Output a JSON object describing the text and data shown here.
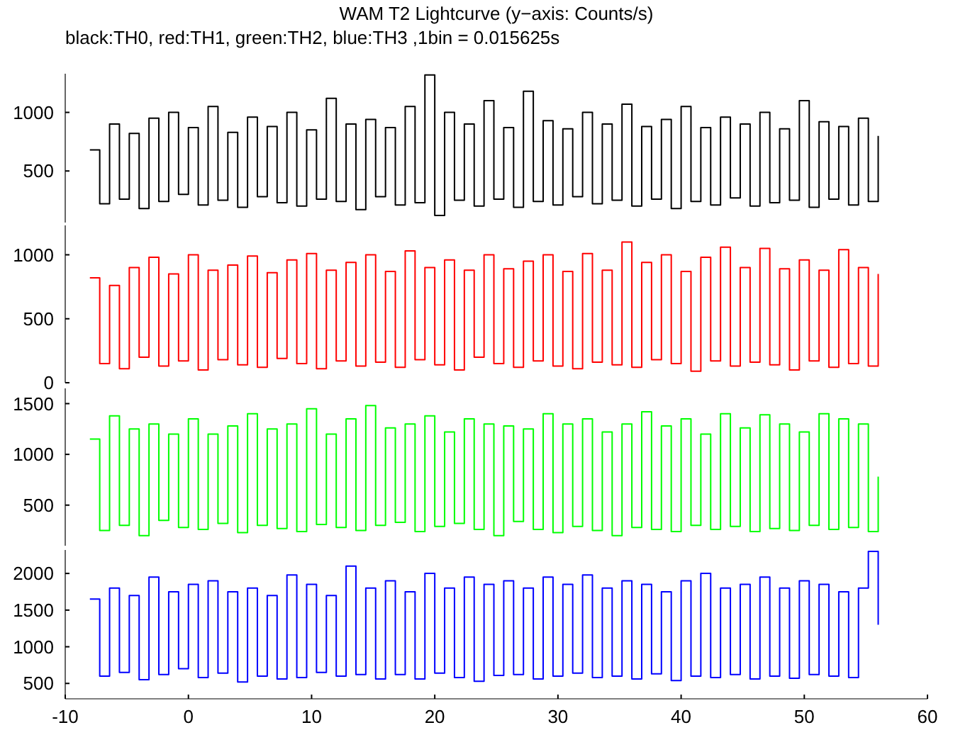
{
  "chart_data": [
    {
      "type": "step",
      "title": "WAM T2 Lightcurve (y−axis: Counts/s)",
      "subtitle": "black:TH0, red:TH1, green:TH2, blue:TH3 ,1bin = 0.015625s",
      "xlim": [
        -10,
        60
      ],
      "ylim": [
        60,
        1330
      ],
      "yticks": [
        500,
        1000
      ],
      "tick_labels": "y",
      "x": [
        -8,
        -7.2,
        -6.4,
        -5.6,
        -4.8,
        -4,
        -3.2,
        -2.4,
        -1.6,
        -0.8,
        0,
        0.8,
        1.6,
        2.4,
        3.2,
        4,
        4.8,
        5.6,
        6.4,
        7.2,
        8,
        8.8,
        9.6,
        10.4,
        11.2,
        12,
        12.8,
        13.6,
        14.4,
        15.2,
        16,
        16.8,
        17.6,
        18.4,
        19.2,
        20,
        20.8,
        21.6,
        22.4,
        23.2,
        24,
        24.8,
        25.6,
        26.4,
        27.2,
        28,
        28.8,
        29.6,
        30.4,
        31.2,
        32,
        32.8,
        33.6,
        34.4,
        35.2,
        36,
        36.8,
        37.6,
        38.4,
        39.2,
        40,
        40.8,
        41.6,
        42.4,
        43.2,
        44,
        44.8,
        45.6,
        46.4,
        47.2,
        48,
        48.8,
        49.6,
        50.4,
        51.2,
        52,
        52.8,
        53.6,
        54.4,
        55.2,
        56
      ],
      "series": [
        {
          "color": "#000000",
          "values": [
            680,
            220,
            900,
            260,
            820,
            180,
            950,
            240,
            1000,
            300,
            870,
            210,
            1050,
            250,
            830,
            190,
            960,
            280,
            880,
            230,
            1000,
            200,
            850,
            260,
            1120,
            240,
            900,
            170,
            940,
            280,
            870,
            210,
            1050,
            230,
            1320,
            120,
            1000,
            250,
            900,
            200,
            1100,
            260,
            870,
            190,
            1180,
            240,
            930,
            210,
            860,
            280,
            1000,
            220,
            900,
            250,
            1070,
            200,
            880,
            260,
            940,
            180,
            1050,
            240,
            870,
            210,
            960,
            270,
            900,
            200,
            1000,
            230,
            860,
            250,
            1100,
            190,
            920,
            260,
            880,
            210,
            950,
            240,
            800
          ]
        }
      ]
    },
    {
      "type": "step",
      "xlim": [
        -10,
        60
      ],
      "ylim": [
        0,
        1230
      ],
      "yticks": [
        0,
        500,
        1000
      ],
      "tick_labels": "y",
      "x": [
        -8,
        -7.2,
        -6.4,
        -5.6,
        -4.8,
        -4,
        -3.2,
        -2.4,
        -1.6,
        -0.8,
        0,
        0.8,
        1.6,
        2.4,
        3.2,
        4,
        4.8,
        5.6,
        6.4,
        7.2,
        8,
        8.8,
        9.6,
        10.4,
        11.2,
        12,
        12.8,
        13.6,
        14.4,
        15.2,
        16,
        16.8,
        17.6,
        18.4,
        19.2,
        20,
        20.8,
        21.6,
        22.4,
        23.2,
        24,
        24.8,
        25.6,
        26.4,
        27.2,
        28,
        28.8,
        29.6,
        30.4,
        31.2,
        32,
        32.8,
        33.6,
        34.4,
        35.2,
        36,
        36.8,
        37.6,
        38.4,
        39.2,
        40,
        40.8,
        41.6,
        42.4,
        43.2,
        44,
        44.8,
        45.6,
        46.4,
        47.2,
        48,
        48.8,
        49.6,
        50.4,
        51.2,
        52,
        52.8,
        53.6,
        54.4,
        55.2,
        56
      ],
      "series": [
        {
          "color": "#ff0000",
          "values": [
            820,
            150,
            760,
            110,
            900,
            200,
            980,
            130,
            850,
            170,
            1000,
            100,
            880,
            180,
            920,
            140,
            990,
            120,
            860,
            190,
            960,
            150,
            1010,
            110,
            880,
            170,
            940,
            130,
            1000,
            160,
            870,
            120,
            1030,
            180,
            900,
            140,
            960,
            100,
            880,
            200,
            1000,
            150,
            890,
            120,
            950,
            170,
            1000,
            130,
            870,
            110,
            1010,
            160,
            880,
            140,
            1100,
            120,
            940,
            180,
            1000,
            150,
            870,
            90,
            980,
            170,
            1060,
            130,
            900,
            160,
            1050,
            140,
            890,
            100,
            960,
            170,
            880,
            120,
            1040,
            150,
            900,
            130,
            850
          ]
        }
      ]
    },
    {
      "type": "step",
      "xlim": [
        -10,
        60
      ],
      "ylim": [
        100,
        1650
      ],
      "yticks": [
        500,
        1000,
        1500
      ],
      "tick_labels": "y",
      "x": [
        -8,
        -7.2,
        -6.4,
        -5.6,
        -4.8,
        -4,
        -3.2,
        -2.4,
        -1.6,
        -0.8,
        0,
        0.8,
        1.6,
        2.4,
        3.2,
        4,
        4.8,
        5.6,
        6.4,
        7.2,
        8,
        8.8,
        9.6,
        10.4,
        11.2,
        12,
        12.8,
        13.6,
        14.4,
        15.2,
        16,
        16.8,
        17.6,
        18.4,
        19.2,
        20,
        20.8,
        21.6,
        22.4,
        23.2,
        24,
        24.8,
        25.6,
        26.4,
        27.2,
        28,
        28.8,
        29.6,
        30.4,
        31.2,
        32,
        32.8,
        33.6,
        34.4,
        35.2,
        36,
        36.8,
        37.6,
        38.4,
        39.2,
        40,
        40.8,
        41.6,
        42.4,
        43.2,
        44,
        44.8,
        45.6,
        46.4,
        47.2,
        48,
        48.8,
        49.6,
        50.4,
        51.2,
        52,
        52.8,
        53.6,
        54.4,
        55.2,
        56
      ],
      "series": [
        {
          "color": "#00ff00",
          "values": [
            1150,
            250,
            1380,
            300,
            1250,
            200,
            1300,
            350,
            1200,
            280,
            1350,
            260,
            1200,
            320,
            1280,
            230,
            1400,
            300,
            1250,
            270,
            1300,
            240,
            1450,
            310,
            1200,
            280,
            1350,
            250,
            1480,
            300,
            1260,
            330,
            1300,
            240,
            1380,
            290,
            1220,
            320,
            1350,
            260,
            1300,
            200,
            1280,
            340,
            1250,
            260,
            1400,
            230,
            1300,
            290,
            1350,
            250,
            1220,
            200,
            1300,
            280,
            1420,
            260,
            1280,
            240,
            1350,
            300,
            1200,
            260,
            1400,
            290,
            1260,
            240,
            1390,
            270,
            1300,
            250,
            1220,
            300,
            1400,
            260,
            1350,
            280,
            1300,
            240,
            780
          ]
        }
      ]
    },
    {
      "type": "step",
      "xlim": [
        -10,
        60
      ],
      "ylim": [
        290,
        2320
      ],
      "yticks": [
        500,
        1000,
        1500,
        2000
      ],
      "xticks": [
        -10,
        0,
        10,
        20,
        30,
        40,
        50,
        60
      ],
      "x": [
        -8,
        -7.2,
        -6.4,
        -5.6,
        -4.8,
        -4,
        -3.2,
        -2.4,
        -1.6,
        -0.8,
        0,
        0.8,
        1.6,
        2.4,
        3.2,
        4,
        4.8,
        5.6,
        6.4,
        7.2,
        8,
        8.8,
        9.6,
        10.4,
        11.2,
        12,
        12.8,
        13.6,
        14.4,
        15.2,
        16,
        16.8,
        17.6,
        18.4,
        19.2,
        20,
        20.8,
        21.6,
        22.4,
        23.2,
        24,
        24.8,
        25.6,
        26.4,
        27.2,
        28,
        28.8,
        29.6,
        30.4,
        31.2,
        32,
        32.8,
        33.6,
        34.4,
        35.2,
        36,
        36.8,
        37.6,
        38.4,
        39.2,
        40,
        40.8,
        41.6,
        42.4,
        43.2,
        44,
        44.8,
        45.6,
        46.4,
        47.2,
        48,
        48.8,
        49.6,
        50.4,
        51.2,
        52,
        52.8,
        53.6,
        54.4,
        55.2,
        56
      ],
      "series": [
        {
          "color": "#0000ff",
          "values": [
            1650,
            600,
            1800,
            650,
            1700,
            550,
            1950,
            620,
            1750,
            700,
            1850,
            580,
            1900,
            640,
            1750,
            520,
            1800,
            600,
            1700,
            560,
            1980,
            580,
            1850,
            650,
            1700,
            600,
            2100,
            620,
            1800,
            560,
            1900,
            620,
            1750,
            560,
            2000,
            640,
            1800,
            580,
            1950,
            530,
            1850,
            610,
            1900,
            620,
            1800,
            560,
            1950,
            600,
            1850,
            640,
            1980,
            580,
            1800,
            600,
            1900,
            560,
            1850,
            630,
            1750,
            540,
            1900,
            600,
            2000,
            580,
            1800,
            620,
            1850,
            560,
            1950,
            600,
            1800,
            570,
            1900,
            620,
            1850,
            600,
            1750,
            580,
            1800,
            2300,
            1300
          ]
        }
      ]
    }
  ]
}
